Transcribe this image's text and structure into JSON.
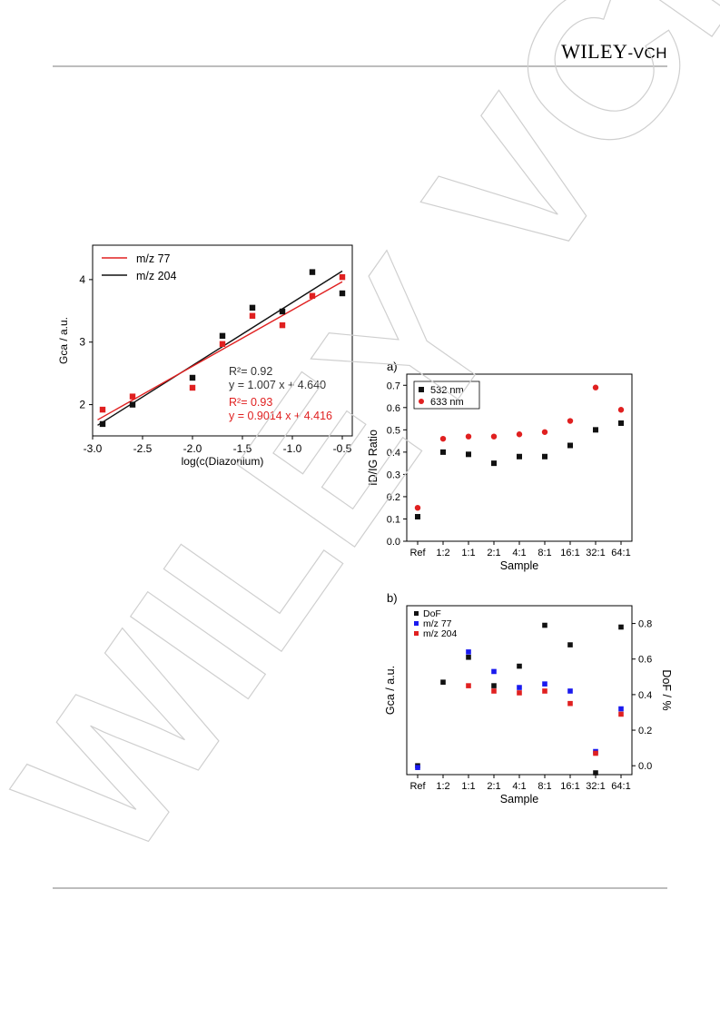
{
  "header": {
    "logo_main": "WILEY",
    "logo_suffix": "-VCH"
  },
  "watermark": "WILEY VCH",
  "figures": [
    {
      "legend": [
        "m/z 77",
        "m/z 204"
      ],
      "annotations": {
        "black_r2": "R²= 0.92",
        "black_eq": "y = 1.007 x + 4.640",
        "red_r2": "R²= 0.93",
        "red_eq": "y = 0.9014 x + 4.416"
      }
    }
  ],
  "chart_data": [
    {
      "type": "scatter",
      "xlabel": "log(c(Diazonium)",
      "ylabel": "Gca / a.u.",
      "xlim": [
        -3.0,
        -0.4
      ],
      "ylim": [
        1.5,
        4.55
      ],
      "xticks": [
        "-3.0",
        "-2.5",
        "-2.0",
        "-1.5",
        "-1.0",
        "-0.5"
      ],
      "yticks": [
        "2",
        "3",
        "4"
      ],
      "legend_position": "top-left",
      "colors": {
        "m/z 77": "#e02020",
        "m/z 204": "#111111"
      },
      "series": [
        {
          "name": "m/z 77",
          "x": [
            -2.9,
            -2.6,
            -2.0,
            -1.7,
            -1.4,
            -1.1,
            -0.8,
            -0.5
          ],
          "y": [
            1.92,
            2.13,
            2.27,
            2.97,
            3.42,
            3.27,
            3.74,
            4.04
          ],
          "fit": {
            "slope": 0.9014,
            "intercept": 4.416
          }
        },
        {
          "name": "m/z 204",
          "x": [
            -2.9,
            -2.6,
            -2.0,
            -1.7,
            -1.4,
            -1.1,
            -0.8,
            -0.5
          ],
          "y": [
            1.69,
            2.0,
            2.43,
            3.1,
            3.55,
            3.49,
            4.12,
            3.78
          ],
          "fit": {
            "slope": 1.007,
            "intercept": 4.64
          }
        }
      ]
    },
    {
      "type": "scatter",
      "panel_label": "a)",
      "xlabel": "Sample",
      "ylabel": "ID/IG Ratio",
      "categories": [
        "Ref",
        "1:2",
        "1:1",
        "2:1",
        "4:1",
        "8:1",
        "16:1",
        "32:1",
        "64:1"
      ],
      "ylim": [
        0.0,
        0.75
      ],
      "yticks": [
        "0.0",
        "0.1",
        "0.2",
        "0.3",
        "0.4",
        "0.5",
        "0.6",
        "0.7"
      ],
      "legend_position": "top-left",
      "series": [
        {
          "name": "532 nm",
          "color": "#111111",
          "marker": "square",
          "values": [
            0.11,
            0.4,
            0.39,
            0.35,
            0.38,
            0.38,
            0.43,
            0.5,
            0.53
          ]
        },
        {
          "name": "633 nm",
          "color": "#e02020",
          "marker": "circle",
          "values": [
            0.15,
            0.46,
            0.47,
            0.47,
            0.48,
            0.49,
            0.54,
            0.69,
            0.59
          ]
        }
      ]
    },
    {
      "type": "scatter",
      "panel_label": "b)",
      "xlabel": "Sample",
      "ylabel": "Gca / a.u.",
      "ylabel_right": "DoF / %",
      "categories": [
        "Ref",
        "1:2",
        "1:1",
        "2:1",
        "4:1",
        "8:1",
        "16:1",
        "32:1",
        "64:1"
      ],
      "right_ylim": [
        -0.05,
        0.9
      ],
      "right_yticks": [
        "0.0",
        "0.2",
        "0.4",
        "0.6",
        "0.8"
      ],
      "legend_position": "top-left",
      "series": [
        {
          "name": "DoF",
          "color": "#111111",
          "axis": "right",
          "values": [
            0.0,
            0.47,
            0.61,
            0.45,
            0.56,
            0.79,
            0.68,
            -0.04,
            0.78
          ]
        },
        {
          "name": "m/z 77",
          "color": "#1a1aee",
          "axis": "right",
          "values": [
            -0.01,
            null,
            0.64,
            0.53,
            0.44,
            0.46,
            0.42,
            0.08,
            0.32
          ]
        },
        {
          "name": "m/z 204",
          "color": "#e02020",
          "axis": "right",
          "values": [
            null,
            null,
            0.45,
            0.42,
            0.41,
            0.42,
            0.35,
            0.07,
            0.29
          ]
        }
      ]
    }
  ]
}
